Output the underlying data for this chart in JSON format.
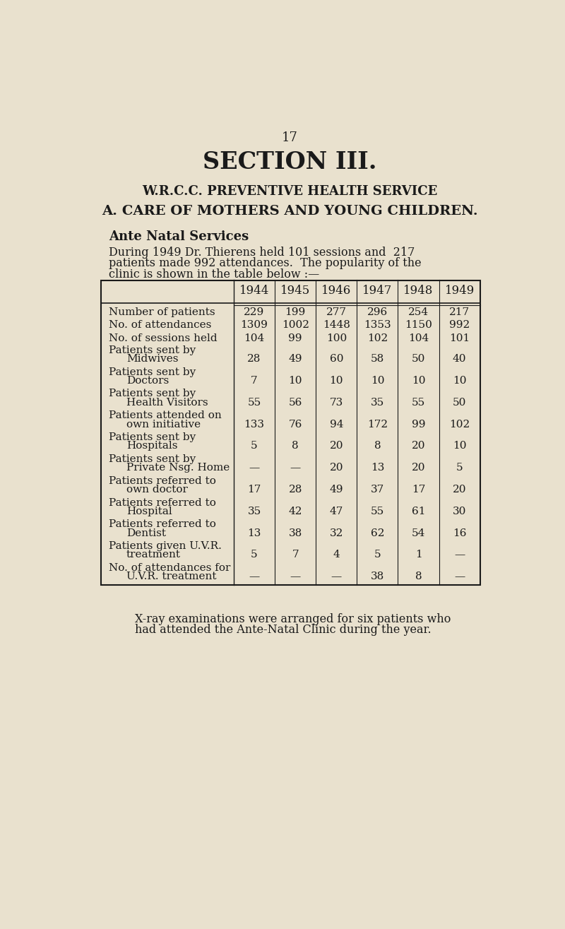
{
  "page_number": "17",
  "title": "SECTION III.",
  "subtitle1": "W.R.C.C. PREVENTIVE HEALTH SERVICE",
  "subtitle2": "A. CARE OF MOTHERS AND YOUNG CHILDREN.",
  "section_title": "Ante Natal Services",
  "para_line1": "During 1949 Dr. Thierens held 101 sessions and  217",
  "para_line2": "patients made 992 attendances.  The popularity of the",
  "para_line3": "clinic is shown in the table below :—",
  "footer_line1": "X-ray examinations were arranged for six patients who",
  "footer_line2": "had attended the Ante-Natal Clinic during the year.",
  "bg_color": "#e9e1ce",
  "text_color": "#1a1a1a",
  "years": [
    "1944",
    "1945",
    "1946",
    "1947",
    "1948",
    "1949"
  ],
  "rows": [
    {
      "label_line1": "Number of patients",
      "label_line2": null,
      "values": [
        "229",
        "199",
        "277",
        "296",
        "254",
        "217"
      ]
    },
    {
      "label_line1": "No. of attendances",
      "label_line2": null,
      "values": [
        "1309",
        "1002",
        "1448",
        "1353",
        "1150",
        "992"
      ]
    },
    {
      "label_line1": "No. of sessions held",
      "label_line2": null,
      "values": [
        "104",
        "99",
        "100",
        "102",
        "104",
        "101"
      ]
    },
    {
      "label_line1": "Patients sent by",
      "label_line2": "Midwives",
      "values": [
        "28",
        "49",
        "60",
        "58",
        "50",
        "40"
      ]
    },
    {
      "label_line1": "Patients sent by",
      "label_line2": "Doctors",
      "values": [
        "7",
        "10",
        "10",
        "10",
        "10",
        "10"
      ]
    },
    {
      "label_line1": "Patients sent by",
      "label_line2": "Health Visitors",
      "values": [
        "55",
        "56",
        "73",
        "35",
        "55",
        "50"
      ]
    },
    {
      "label_line1": "Patients attended on",
      "label_line2": "own initiative",
      "values": [
        "133",
        "76",
        "94",
        "172",
        "99",
        "102"
      ]
    },
    {
      "label_line1": "Patients sent by",
      "label_line2": "Hospitals",
      "values": [
        "5",
        "8",
        "20",
        "8",
        "20",
        "10"
      ]
    },
    {
      "label_line1": "Patients sent by",
      "label_line2": "Private Nsg. Home",
      "values": [
        "—",
        "—",
        "20",
        "13",
        "20",
        "5"
      ]
    },
    {
      "label_line1": "Patients referred to",
      "label_line2": "own doctor",
      "values": [
        "17",
        "28",
        "49",
        "37",
        "17",
        "20"
      ]
    },
    {
      "label_line1": "Patients referred to",
      "label_line2": "Hospital",
      "values": [
        "35",
        "42",
        "47",
        "55",
        "61",
        "30"
      ]
    },
    {
      "label_line1": "Patients referred to",
      "label_line2": "Dentist",
      "values": [
        "13",
        "38",
        "32",
        "62",
        "54",
        "16"
      ]
    },
    {
      "label_line1": "Patients given U.V.R.",
      "label_line2": "treatment",
      "values": [
        "5",
        "7",
        "4",
        "5",
        "1",
        "—"
      ]
    },
    {
      "label_line1": "No. of attendances for",
      "label_line2": "U.V.R. treatment",
      "values": [
        "—",
        "—",
        "—",
        "38",
        "8",
        "—"
      ]
    }
  ]
}
